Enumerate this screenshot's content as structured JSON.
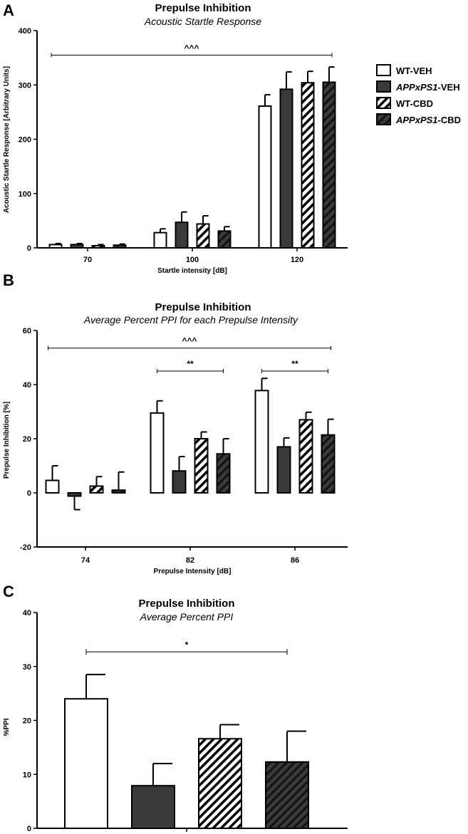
{
  "colors": {
    "white": "#ffffff",
    "dark": "#3a3a3a",
    "black": "#000000"
  },
  "legend": {
    "entries": [
      {
        "pattern": "white",
        "italic": "",
        "text": "WT-VEH"
      },
      {
        "pattern": "dark",
        "italic": "APPxPS1",
        "text": "-VEH"
      },
      {
        "pattern": "hatch",
        "italic": "",
        "text": "WT-CBD"
      },
      {
        "pattern": "darkhatch",
        "italic": "APPxPS1",
        "text": "-CBD"
      }
    ]
  },
  "chart_data": [
    {
      "panel": "A",
      "type": "bar",
      "title": "Prepulse Inhibition",
      "subtitle": "Acoustic Startle Response",
      "xlabel": "Startle intensity [dB]",
      "ylabel": "Acoustic Startle Response [Arbitrary Units]",
      "ylim": [
        0,
        400
      ],
      "yticks": [
        "0",
        "100",
        "200",
        "300",
        "400"
      ],
      "categories": [
        "70",
        "100",
        "120"
      ],
      "series": [
        {
          "name": "WT-VEH",
          "values": [
            6,
            28,
            261
          ],
          "errors": [
            2,
            7,
            21
          ]
        },
        {
          "name": "APPxPS1-VEH",
          "values": [
            6,
            47,
            292
          ],
          "errors": [
            2,
            19,
            32
          ]
        },
        {
          "name": "WT-CBD",
          "values": [
            4,
            44,
            304
          ],
          "errors": [
            2,
            15,
            21
          ]
        },
        {
          "name": "APPxPS1-CBD",
          "values": [
            5,
            31,
            305
          ],
          "errors": [
            2,
            8,
            28
          ]
        }
      ],
      "significance": [
        {
          "label": "^^^",
          "from_group": 0,
          "to_group": 2,
          "y": 355
        }
      ]
    },
    {
      "panel": "B",
      "type": "bar",
      "title": "Prepulse Inhibition",
      "subtitle": "Average Percent PPI for each Prepulse Intensity",
      "xlabel": "Prepulse Intensity [dB]",
      "ylabel": "Prepulse Inhibition [%]",
      "ylim": [
        -20,
        60
      ],
      "yticks": [
        "-20",
        "0",
        "20",
        "40",
        "60"
      ],
      "categories": [
        "74",
        "82",
        "86"
      ],
      "series": [
        {
          "name": "WT-VEH",
          "values": [
            4.6,
            29.5,
            37.8
          ],
          "errors": [
            5.4,
            4.5,
            4.5
          ]
        },
        {
          "name": "APPxPS1-VEH",
          "values": [
            -1.2,
            8.1,
            17.0
          ],
          "errors": [
            5.0,
            5.3,
            3.3
          ]
        },
        {
          "name": "WT-CBD",
          "values": [
            2.5,
            20.0,
            27.0
          ],
          "errors": [
            3.5,
            2.5,
            2.8
          ]
        },
        {
          "name": "APPxPS1-CBD",
          "values": [
            1.0,
            14.4,
            21.4
          ],
          "errors": [
            6.7,
            5.6,
            5.8
          ]
        }
      ],
      "significance": [
        {
          "label": "^^^",
          "from_group": 0,
          "to_group": 2,
          "y": 53.5
        },
        {
          "label": "**",
          "from_group": 1,
          "to_group": 1,
          "y": 45
        },
        {
          "label": "**",
          "from_group": 2,
          "to_group": 2,
          "y": 45
        }
      ]
    },
    {
      "panel": "C",
      "type": "bar",
      "title": "Prepulse Inhibition",
      "subtitle": "Average Percent PPI",
      "xlabel": "",
      "ylabel": "%PPI",
      "ylim": [
        0,
        40
      ],
      "yticks": [
        "0",
        "10",
        "20",
        "30",
        "40"
      ],
      "categories": [
        ""
      ],
      "series": [
        {
          "name": "WT-VEH",
          "values": [
            24.0
          ],
          "errors": [
            4.5
          ]
        },
        {
          "name": "APPxPS1-VEH",
          "values": [
            7.9
          ],
          "errors": [
            4.1
          ]
        },
        {
          "name": "WT-CBD",
          "values": [
            16.6
          ],
          "errors": [
            2.6
          ]
        },
        {
          "name": "APPxPS1-CBD",
          "values": [
            12.3
          ],
          "errors": [
            5.7
          ]
        }
      ],
      "significance": [
        {
          "label": "*",
          "from_series": 0,
          "to_series": 3,
          "y": 32.7
        }
      ]
    }
  ]
}
